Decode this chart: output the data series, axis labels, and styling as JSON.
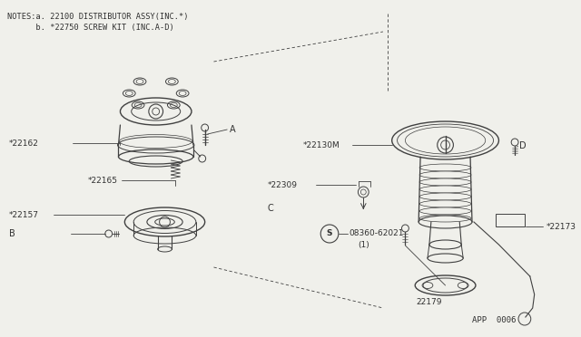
{
  "bg": "#f0f0eb",
  "lc": "#404040",
  "tc": "#303030",
  "notes1": "NOTES:a. 22100 DISTRIBUTOR ASSY(INC.*)",
  "notes2": "      b. *22750 SCREW KIT (INC.A-D)",
  "footer": "APP  0006"
}
